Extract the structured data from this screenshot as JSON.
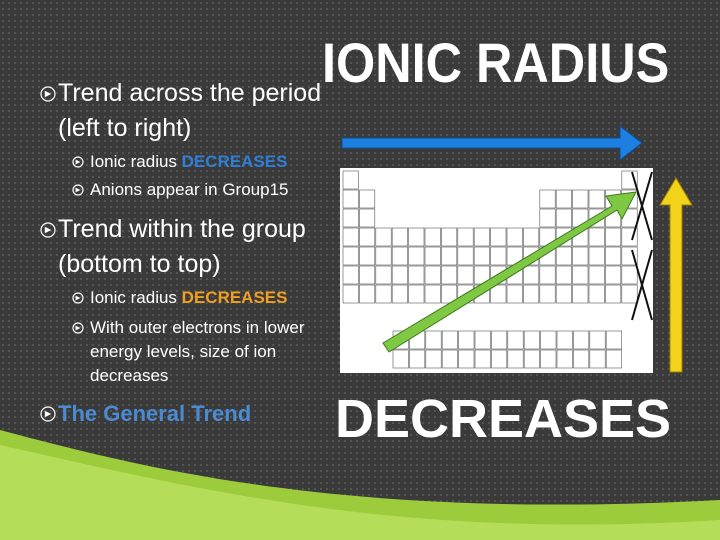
{
  "title": "IONIC RADIUS",
  "bullets": [
    {
      "text": "Trend across the period (left to right)",
      "subs": [
        {
          "text": "Ionic radius",
          "emphasis": "DECREASES"
        },
        {
          "text": "Anions appear in Group15"
        }
      ]
    },
    {
      "text": "Trend within the group (bottom to top)",
      "subs": [
        {
          "text": "Ionic radius",
          "emphasis": "DECREASES"
        },
        {
          "text": "With outer electrons in lower energy levels, size of ion decreases"
        }
      ]
    },
    {
      "text": "The General Trend"
    }
  ],
  "conclusion": "DECREASES"
}
